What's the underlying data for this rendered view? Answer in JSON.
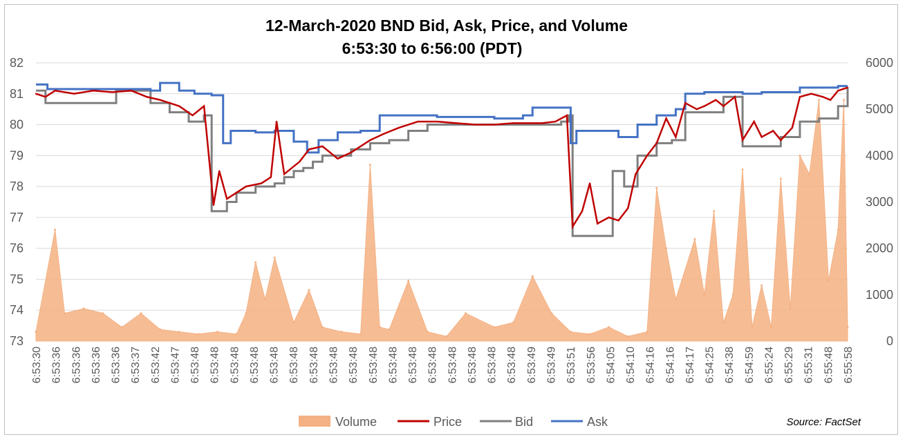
{
  "chart_data": {
    "type": "line",
    "title": "12-March-2020 BND Bid, Ask, Price, and Volume",
    "subtitle": "6:53:30 to 6:56:00 (PDT)",
    "source": "Source: FactSet",
    "y_left": {
      "min": 73,
      "max": 82,
      "ticks": [
        "82",
        "81",
        "80",
        "79",
        "78",
        "77",
        "76",
        "75",
        "74",
        "73"
      ]
    },
    "y_right": {
      "min": 0,
      "max": 6000,
      "ticks": [
        "6000",
        "5000",
        "4000",
        "3000",
        "2000",
        "1000",
        "0"
      ]
    },
    "x_tick_labels": [
      "6:53:30",
      "6:53:36",
      "6:53:36",
      "6:53:36",
      "6:53:36",
      "6:53:37",
      "6:53:42",
      "6:53:47",
      "6:53:48",
      "6:53:48",
      "6:53:48",
      "6:53:48",
      "6:53:48",
      "6:53:48",
      "6:53:48",
      "6:53:48",
      "6:53:48",
      "6:53:48",
      "6:53:48",
      "6:53:48",
      "6:53:48",
      "6:53:48",
      "6:53:48",
      "6:53:48",
      "6:53:48",
      "6:53:49",
      "6:53:49",
      "6:53:51",
      "6:53:56",
      "6:54:05",
      "6:54:10",
      "6:54:16",
      "6:54:16",
      "6:54:17",
      "6:54:25",
      "6:54:38",
      "6:54:59",
      "6:55:24",
      "6:55:29",
      "6:55:31",
      "6:55:48",
      "6:55:58"
    ],
    "legend": [
      {
        "key": "volume",
        "label": "Volume",
        "color": "#f4b183",
        "type": "area"
      },
      {
        "key": "price",
        "label": "Price",
        "color": "#c00000",
        "type": "line"
      },
      {
        "key": "bid",
        "label": "Bid",
        "color": "#7f7f7f",
        "type": "line"
      },
      {
        "key": "ask",
        "label": "Ask",
        "color": "#4472c4",
        "type": "line"
      }
    ],
    "ask": [
      [
        0,
        81.3
      ],
      [
        0.6,
        81.15
      ],
      [
        5,
        81.15
      ],
      [
        6,
        81.1
      ],
      [
        6.5,
        81.35
      ],
      [
        7.5,
        81.1
      ],
      [
        8.3,
        81.0
      ],
      [
        9.2,
        80.95
      ],
      [
        9.8,
        79.4
      ],
      [
        10.2,
        79.8
      ],
      [
        11.5,
        79.75
      ],
      [
        12.5,
        79.8
      ],
      [
        13.5,
        79.45
      ],
      [
        14.2,
        79.1
      ],
      [
        14.8,
        79.5
      ],
      [
        15.8,
        79.75
      ],
      [
        17.0,
        79.8
      ],
      [
        18.0,
        80.3
      ],
      [
        21.0,
        80.25
      ],
      [
        24.0,
        80.2
      ],
      [
        25.5,
        80.3
      ],
      [
        26.0,
        80.55
      ],
      [
        27.8,
        80.55
      ],
      [
        28.0,
        79.4
      ],
      [
        28.3,
        79.8
      ],
      [
        29.5,
        79.8
      ],
      [
        30.5,
        79.6
      ],
      [
        31.5,
        80.0
      ],
      [
        32.5,
        80.3
      ],
      [
        33.5,
        80.5
      ],
      [
        34.0,
        81.0
      ],
      [
        35.0,
        81.05
      ],
      [
        36.0,
        81.05
      ],
      [
        37.0,
        81.0
      ],
      [
        38.0,
        81.05
      ],
      [
        39.5,
        81.05
      ],
      [
        40.0,
        81.2
      ],
      [
        41.0,
        81.2
      ],
      [
        42.0,
        81.25
      ],
      [
        42.5,
        81.25
      ]
    ],
    "bid": [
      [
        0,
        81.1
      ],
      [
        0.5,
        80.7
      ],
      [
        3.8,
        80.7
      ],
      [
        4.2,
        81.1
      ],
      [
        5.0,
        81.1
      ],
      [
        6.0,
        80.7
      ],
      [
        7.0,
        80.4
      ],
      [
        8.0,
        80.1
      ],
      [
        8.8,
        80.3
      ],
      [
        9.2,
        77.2
      ],
      [
        10.0,
        77.5
      ],
      [
        10.5,
        77.8
      ],
      [
        11.5,
        78.0
      ],
      [
        12.5,
        78.1
      ],
      [
        13.0,
        78.3
      ],
      [
        13.5,
        78.5
      ],
      [
        14.0,
        78.6
      ],
      [
        14.5,
        78.8
      ],
      [
        15.0,
        79.0
      ],
      [
        16.5,
        79.2
      ],
      [
        17.5,
        79.4
      ],
      [
        18.5,
        79.5
      ],
      [
        19.5,
        79.8
      ],
      [
        20.5,
        80.0
      ],
      [
        22.0,
        80.0
      ],
      [
        24.0,
        80.0
      ],
      [
        26.0,
        80.0
      ],
      [
        27.5,
        80.1
      ],
      [
        27.9,
        80.3
      ],
      [
        28.1,
        76.4
      ],
      [
        29.0,
        76.4
      ],
      [
        29.9,
        76.4
      ],
      [
        30.2,
        78.5
      ],
      [
        30.8,
        78.0
      ],
      [
        31.5,
        79.0
      ],
      [
        32.5,
        79.4
      ],
      [
        33.3,
        79.5
      ],
      [
        34.0,
        80.4
      ],
      [
        35.0,
        80.4
      ],
      [
        36.0,
        80.9
      ],
      [
        37.0,
        79.3
      ],
      [
        38.0,
        79.3
      ],
      [
        39.0,
        79.6
      ],
      [
        40.0,
        80.1
      ],
      [
        41.0,
        80.2
      ],
      [
        42.0,
        80.6
      ],
      [
        42.5,
        81.2
      ]
    ],
    "price": [
      [
        0,
        81.0
      ],
      [
        0.5,
        80.9
      ],
      [
        1.0,
        81.1
      ],
      [
        2.0,
        81.0
      ],
      [
        3.0,
        81.1
      ],
      [
        4.0,
        81.05
      ],
      [
        5.0,
        81.1
      ],
      [
        5.8,
        80.9
      ],
      [
        6.5,
        80.8
      ],
      [
        7.5,
        80.6
      ],
      [
        8.2,
        80.3
      ],
      [
        8.8,
        80.6
      ],
      [
        9.3,
        77.4
      ],
      [
        9.6,
        78.5
      ],
      [
        10.0,
        77.6
      ],
      [
        10.5,
        77.8
      ],
      [
        11.0,
        78.0
      ],
      [
        11.8,
        78.1
      ],
      [
        12.3,
        78.3
      ],
      [
        12.6,
        80.1
      ],
      [
        13.0,
        78.4
      ],
      [
        13.8,
        78.8
      ],
      [
        14.3,
        79.2
      ],
      [
        15.0,
        79.3
      ],
      [
        15.8,
        78.9
      ],
      [
        16.5,
        79.1
      ],
      [
        17.5,
        79.5
      ],
      [
        18.2,
        79.7
      ],
      [
        19.0,
        79.9
      ],
      [
        20.0,
        80.1
      ],
      [
        21.0,
        80.1
      ],
      [
        22.0,
        80.05
      ],
      [
        23.0,
        80.0
      ],
      [
        24.0,
        80.0
      ],
      [
        25.0,
        80.05
      ],
      [
        26.5,
        80.05
      ],
      [
        27.2,
        80.1
      ],
      [
        27.8,
        80.3
      ],
      [
        28.1,
        76.7
      ],
      [
        28.6,
        77.2
      ],
      [
        29.0,
        78.1
      ],
      [
        29.4,
        76.8
      ],
      [
        30.0,
        77.0
      ],
      [
        30.5,
        76.9
      ],
      [
        31.0,
        77.3
      ],
      [
        31.4,
        78.4
      ],
      [
        32.0,
        79.0
      ],
      [
        32.5,
        79.4
      ],
      [
        33.0,
        80.2
      ],
      [
        33.5,
        79.6
      ],
      [
        34.0,
        80.7
      ],
      [
        34.6,
        80.5
      ],
      [
        35.0,
        80.6
      ],
      [
        35.6,
        80.8
      ],
      [
        36.0,
        80.6
      ],
      [
        36.6,
        80.9
      ],
      [
        37.0,
        79.5
      ],
      [
        37.6,
        80.1
      ],
      [
        38.0,
        79.6
      ],
      [
        38.6,
        79.8
      ],
      [
        39.0,
        79.5
      ],
      [
        39.6,
        79.9
      ],
      [
        40.0,
        80.9
      ],
      [
        40.6,
        81.0
      ],
      [
        41.2,
        80.9
      ],
      [
        41.6,
        80.8
      ],
      [
        42.0,
        81.1
      ],
      [
        42.5,
        81.2
      ]
    ],
    "volume": [
      [
        0,
        200
      ],
      [
        1.0,
        2400
      ],
      [
        1.5,
        600
      ],
      [
        2.5,
        700
      ],
      [
        3.5,
        600
      ],
      [
        4.5,
        300
      ],
      [
        5.5,
        600
      ],
      [
        6.5,
        250
      ],
      [
        7.5,
        200
      ],
      [
        8.5,
        150
      ],
      [
        9.5,
        200
      ],
      [
        10.5,
        150
      ],
      [
        11.0,
        600
      ],
      [
        11.5,
        1700
      ],
      [
        12.0,
        900
      ],
      [
        12.5,
        1800
      ],
      [
        13.5,
        400
      ],
      [
        14.3,
        1100
      ],
      [
        15.0,
        300
      ],
      [
        16.0,
        200
      ],
      [
        17.0,
        150
      ],
      [
        17.5,
        3800
      ],
      [
        18.0,
        300
      ],
      [
        18.5,
        250
      ],
      [
        19.5,
        1300
      ],
      [
        20.5,
        200
      ],
      [
        21.5,
        100
      ],
      [
        22.5,
        600
      ],
      [
        24.0,
        300
      ],
      [
        25.0,
        400
      ],
      [
        26.0,
        1400
      ],
      [
        27.0,
        600
      ],
      [
        28.0,
        200
      ],
      [
        29.0,
        150
      ],
      [
        30.0,
        300
      ],
      [
        31.0,
        100
      ],
      [
        32.0,
        200
      ],
      [
        32.5,
        3300
      ],
      [
        33.0,
        2000
      ],
      [
        33.5,
        900
      ],
      [
        34.5,
        2200
      ],
      [
        35.0,
        1000
      ],
      [
        35.5,
        2800
      ],
      [
        36.0,
        400
      ],
      [
        36.5,
        1000
      ],
      [
        37.0,
        3700
      ],
      [
        37.5,
        300
      ],
      [
        38.0,
        1200
      ],
      [
        38.5,
        300
      ],
      [
        39.0,
        3500
      ],
      [
        39.5,
        700
      ],
      [
        40.0,
        4000
      ],
      [
        40.5,
        3600
      ],
      [
        41.0,
        5200
      ],
      [
        41.5,
        1300
      ],
      [
        42.0,
        2400
      ],
      [
        42.3,
        5200
      ],
      [
        42.5,
        300
      ]
    ]
  }
}
